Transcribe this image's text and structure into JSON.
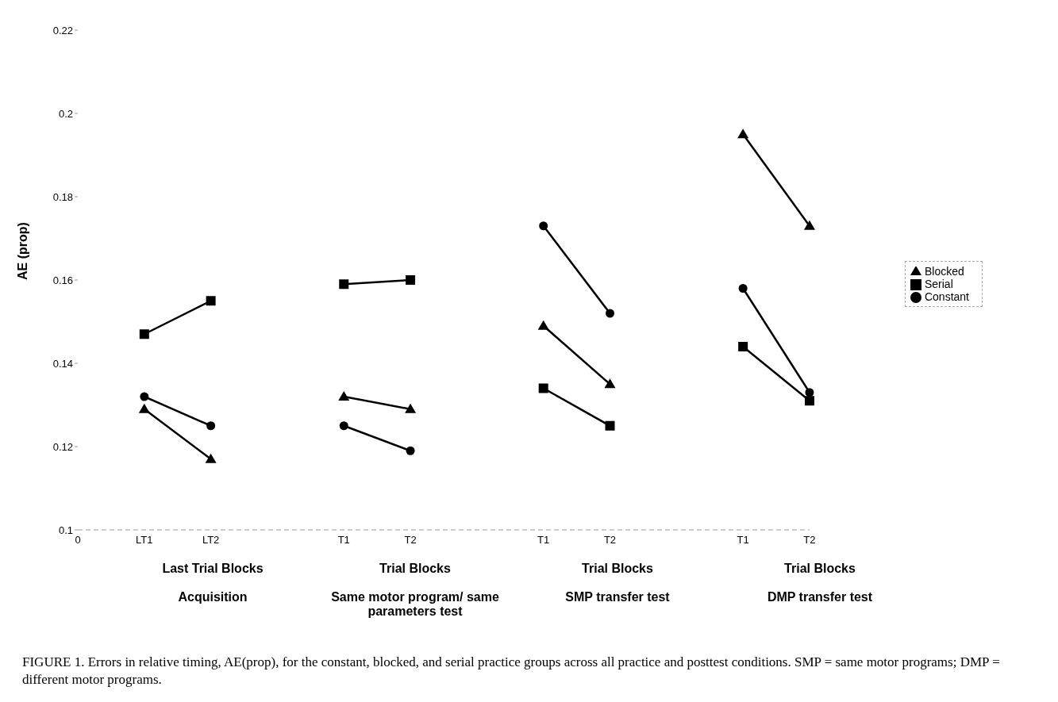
{
  "chart_data": {
    "type": "line",
    "ylabel": "AE (prop)",
    "categories": [
      "0",
      "LT1",
      "LT2",
      null,
      "T1",
      "T2",
      null,
      "T1",
      "T2",
      null,
      "T1",
      "T2"
    ],
    "series": [
      {
        "name": "Blocked",
        "color": "#000000",
        "marker": "triangle",
        "values": [
          null,
          0.129,
          0.117,
          null,
          0.132,
          0.129,
          null,
          0.149,
          0.135,
          null,
          0.195,
          0.173
        ]
      },
      {
        "name": "Serial",
        "color": "#000000",
        "marker": "square",
        "values": [
          null,
          0.147,
          0.155,
          null,
          0.159,
          0.16,
          null,
          0.134,
          0.125,
          null,
          0.144,
          0.131
        ]
      },
      {
        "name": "Constant",
        "color": "#000000",
        "marker": "circle",
        "values": [
          null,
          0.132,
          0.125,
          null,
          0.125,
          0.119,
          null,
          0.173,
          0.152,
          null,
          0.158,
          0.133
        ]
      }
    ],
    "ylim": [
      0.1,
      0.22
    ],
    "yticks": [
      0.1,
      0.12,
      0.14,
      0.16,
      0.18,
      0.2,
      0.22
    ],
    "grid": false,
    "legend": "right",
    "annotations": [
      "Last Trial Blocks",
      "Acquisition",
      "Trial Blocks",
      "Same motor program/ same parameters test",
      "Trial Blocks",
      "SMP transfer test",
      "Trial Blocks",
      "DMP transfer test",
      "FIGURE 1. Errors in relative timing, AE(prop), for the constant, blocked, and serial practice groups across all practice and posttest conditions. SMP = same motor programs; DMP = different motor programs."
    ]
  }
}
